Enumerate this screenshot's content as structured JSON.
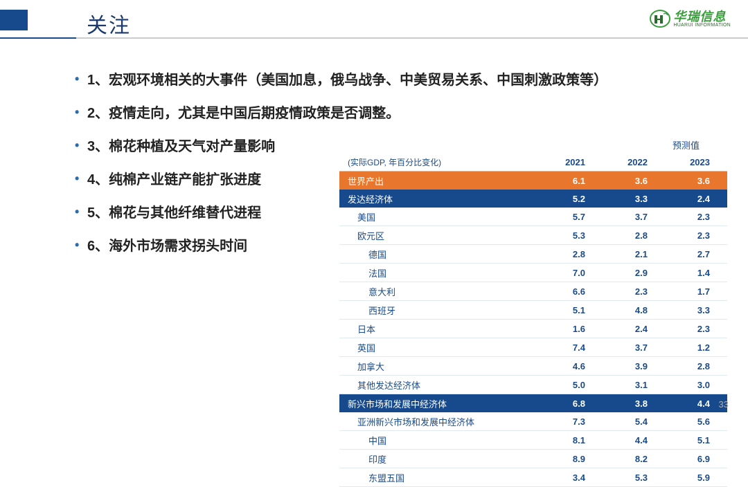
{
  "colors": {
    "title": "#1a3a6e",
    "bullet_marker": "#2a6ab0",
    "bullet_text": "#222222",
    "header_accent_bar": "#174a8c",
    "header_line_short": "#174a8c",
    "logo_green": "#3a9d3c",
    "logo_dark": "#2b6b2d",
    "table_header_text": "#1a4a88",
    "table_label_text": "#1a4a88",
    "row_orange_bg": "#e8762c",
    "row_blue_bg": "#174a8c",
    "table_value_text": "#1a4a88",
    "forecast_text": "#1a4a88"
  },
  "header": {
    "title": "关注",
    "logo_cn": "华瑞信息",
    "logo_en": "HUARUI INFORMATION"
  },
  "bullets": [
    "1、宏观环境相关的大事件（美国加息，俄乌战争、中美贸易关系、中国刺激政策等）",
    "2、疫情走向，尤其是中国后期疫情政策是否调整。",
    "3、棉花种植及天气对产量影响",
    "4、纯棉产业链产能扩张进度",
    "5、棉花与其他纤维替代进程",
    "6、海外市场需求拐头时间"
  ],
  "table": {
    "forecast_label": "预测值",
    "header_note": "(实际GDP, 年百分比变化)",
    "columns": [
      "2021",
      "2022",
      "2023"
    ],
    "rows": [
      {
        "label": "世界产出",
        "values": [
          "6.1",
          "3.6",
          "3.6"
        ],
        "style": "orange",
        "indent": 0
      },
      {
        "label": "发达经济体",
        "values": [
          "5.2",
          "3.3",
          "2.4"
        ],
        "style": "blue",
        "indent": 0
      },
      {
        "label": "美国",
        "values": [
          "5.7",
          "3.7",
          "2.3"
        ],
        "style": "plain",
        "indent": 1
      },
      {
        "label": "欧元区",
        "values": [
          "5.3",
          "2.8",
          "2.3"
        ],
        "style": "plain",
        "indent": 1
      },
      {
        "label": "德国",
        "values": [
          "2.8",
          "2.1",
          "2.7"
        ],
        "style": "plain",
        "indent": 2
      },
      {
        "label": "法国",
        "values": [
          "7.0",
          "2.9",
          "1.4"
        ],
        "style": "plain",
        "indent": 2
      },
      {
        "label": "意大利",
        "values": [
          "6.6",
          "2.3",
          "1.7"
        ],
        "style": "plain",
        "indent": 2
      },
      {
        "label": "西班牙",
        "values": [
          "5.1",
          "4.8",
          "3.3"
        ],
        "style": "plain",
        "indent": 2
      },
      {
        "label": "日本",
        "values": [
          "1.6",
          "2.4",
          "2.3"
        ],
        "style": "plain",
        "indent": 1
      },
      {
        "label": "英国",
        "values": [
          "7.4",
          "3.7",
          "1.2"
        ],
        "style": "plain",
        "indent": 1
      },
      {
        "label": "加拿大",
        "values": [
          "4.6",
          "3.9",
          "2.8"
        ],
        "style": "plain",
        "indent": 1
      },
      {
        "label": "其他发达经济体",
        "values": [
          "5.0",
          "3.1",
          "3.0"
        ],
        "style": "plain",
        "indent": 1
      },
      {
        "label": "新兴市场和发展中经济体",
        "values": [
          "6.8",
          "3.8",
          "4.4"
        ],
        "style": "blue",
        "indent": 0
      },
      {
        "label": "亚洲新兴市场和发展中经济体",
        "values": [
          "7.3",
          "5.4",
          "5.6"
        ],
        "style": "plain",
        "indent": 1
      },
      {
        "label": "中国",
        "values": [
          "8.1",
          "4.4",
          "5.1"
        ],
        "style": "plain",
        "indent": 2
      },
      {
        "label": "印度",
        "values": [
          "8.9",
          "8.2",
          "6.9"
        ],
        "style": "plain",
        "indent": 2
      },
      {
        "label": "东盟五国",
        "values": [
          "3.4",
          "5.3",
          "5.9"
        ],
        "style": "plain",
        "indent": 2
      }
    ]
  },
  "page_number": "33"
}
